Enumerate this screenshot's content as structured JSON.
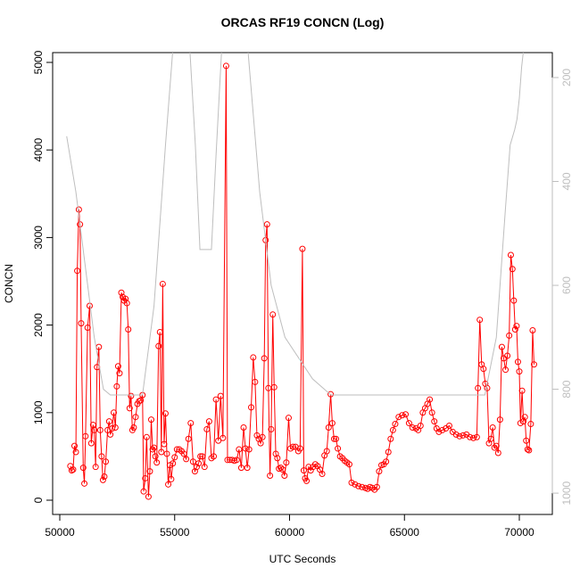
{
  "chart_data": {
    "type": "line",
    "title": "ORCAS RF19 CONCN (Log)",
    "x_label": "UTC Seconds",
    "y_label": "CONCN",
    "xlim": [
      49689,
      71437
    ],
    "ylim": [
      -163,
      5112
    ],
    "y2lim": [
      1041,
      152
    ],
    "xticks": [
      50000,
      55000,
      60000,
      65000,
      70000
    ],
    "yticks": [
      0,
      1000,
      2000,
      3000,
      4000,
      5000
    ],
    "y2ticks": [
      200,
      400,
      600,
      800,
      1000
    ],
    "series": [
      {
        "color": "#ff0000",
        "markers": true,
        "x": [
          50460,
          50520,
          50580,
          50640,
          50700,
          50760,
          50830,
          50880,
          50930,
          51020,
          51070,
          51120,
          51210,
          51300,
          51370,
          51450,
          51500,
          51560,
          51620,
          51700,
          51760,
          51820,
          51880,
          51940,
          52000,
          52080,
          52150,
          52200,
          52280,
          52350,
          52420,
          52480,
          52540,
          52600,
          52680,
          52740,
          52800,
          52860,
          52920,
          52980,
          53040,
          53100,
          53160,
          53220,
          53300,
          53380,
          53450,
          53520,
          53600,
          53650,
          53720,
          53780,
          53860,
          53920,
          53980,
          54040,
          54100,
          54160,
          54220,
          54300,
          54360,
          54420,
          54480,
          54540,
          54600,
          54660,
          54720,
          54790,
          54850,
          54920,
          55000,
          55100,
          55200,
          55300,
          55400,
          55500,
          55600,
          55700,
          55800,
          55880,
          55960,
          56040,
          56120,
          56200,
          56300,
          56400,
          56500,
          56600,
          56700,
          56800,
          56900,
          57000,
          57100,
          57240,
          57300,
          57400,
          57500,
          57600,
          57700,
          57800,
          57900,
          58000,
          58080,
          58160,
          58240,
          58330,
          58420,
          58500,
          58580,
          58660,
          58740,
          58820,
          58900,
          58960,
          59020,
          59080,
          59150,
          59200,
          59270,
          59330,
          59400,
          59470,
          59540,
          59620,
          59700,
          59780,
          59860,
          59960,
          60040,
          60150,
          60260,
          60380,
          60460,
          60560,
          60620,
          60680,
          60740,
          60830,
          60920,
          61020,
          61120,
          61220,
          61320,
          61420,
          61520,
          61620,
          61700,
          61790,
          61860,
          61940,
          62020,
          62100,
          62200,
          62300,
          62400,
          62500,
          62600,
          62700,
          62850,
          63000,
          63150,
          63300,
          63400,
          63500,
          63600,
          63700,
          63800,
          63900,
          64000,
          64100,
          64200,
          64300,
          64400,
          64500,
          64600,
          64750,
          64900,
          65050,
          65200,
          65350,
          65500,
          65600,
          65700,
          65800,
          65900,
          66000,
          66100,
          66200,
          66300,
          66400,
          66500,
          66650,
          66800,
          66950,
          67100,
          67250,
          67400,
          67550,
          67700,
          67850,
          68000,
          68150,
          68200,
          68280,
          68360,
          68440,
          68520,
          68600,
          68680,
          68760,
          68840,
          68920,
          69000,
          69080,
          69160,
          69240,
          69320,
          69400,
          69480,
          69560,
          69630,
          69700,
          69760,
          69820,
          69880,
          69940,
          70000,
          70050,
          70120,
          70180,
          70240,
          70300,
          70360,
          70420,
          70500,
          70580,
          70640
        ],
        "values": [
          390,
          340,
          350,
          620,
          550,
          2620,
          3320,
          3150,
          2020,
          370,
          190,
          730,
          1970,
          2220,
          650,
          860,
          800,
          380,
          1520,
          1750,
          800,
          500,
          230,
          270,
          440,
          800,
          900,
          750,
          820,
          1000,
          830,
          1300,
          1530,
          1450,
          2370,
          2320,
          2280,
          2300,
          2250,
          1950,
          1050,
          1190,
          800,
          830,
          950,
          1100,
          1130,
          1140,
          1200,
          100,
          250,
          720,
          40,
          330,
          920,
          580,
          600,
          500,
          430,
          1760,
          1920,
          550,
          2470,
          640,
          990,
          530,
          180,
          400,
          240,
          420,
          490,
          580,
          580,
          560,
          530,
          470,
          700,
          880,
          440,
          330,
          380,
          420,
          500,
          500,
          380,
          810,
          900,
          480,
          500,
          1150,
          680,
          1190,
          710,
          4960,
          460,
          460,
          460,
          450,
          460,
          580,
          370,
          830,
          590,
          370,
          580,
          1060,
          1630,
          1350,
          740,
          700,
          650,
          720,
          1620,
          2970,
          3150,
          1280,
          280,
          810,
          2120,
          1290,
          530,
          480,
          360,
          370,
          350,
          280,
          430,
          940,
          590,
          610,
          610,
          560,
          590,
          2870,
          340,
          250,
          220,
          380,
          340,
          380,
          410,
          390,
          350,
          300,
          510,
          560,
          830,
          1210,
          880,
          700,
          700,
          590,
          500,
          480,
          450,
          430,
          410,
          200,
          180,
          160,
          150,
          140,
          130,
          150,
          140,
          120,
          150,
          330,
          400,
          410,
          440,
          550,
          700,
          800,
          870,
          950,
          970,
          980,
          880,
          830,
          820,
          800,
          850,
          1000,
          1050,
          1100,
          1150,
          1000,
          900,
          820,
          780,
          800,
          820,
          850,
          780,
          750,
          730,
          740,
          750,
          720,
          710,
          720,
          1280,
          2060,
          1550,
          1500,
          1330,
          1280,
          650,
          700,
          830,
          600,
          620,
          540,
          920,
          1750,
          1620,
          1490,
          1650,
          1880,
          2800,
          2640,
          2280,
          1950,
          1990,
          1580,
          1470,
          880,
          1250,
          900,
          950,
          680,
          580,
          570,
          870,
          1940,
          1550
        ]
      },
      {
        "color": "#bebebe",
        "axis": "y2",
        "markers": false,
        "x": [
          50300,
          50700,
          51100,
          51500,
          51900,
          52200,
          53600,
          54100,
          54600,
          55000,
          55600,
          55900,
          56100,
          56600,
          56800,
          57100,
          58100,
          58400,
          58700,
          59200,
          59800,
          61000,
          61800,
          68500,
          69000,
          69400,
          69600,
          69800,
          69900,
          70000,
          70100,
          70300
        ],
        "values": [
          313,
          420,
          560,
          700,
          800,
          811,
          811,
          640,
          330,
          100,
          100,
          330,
          531,
          531,
          350,
          100,
          100,
          260,
          420,
          600,
          700,
          780,
          811,
          811,
          700,
          450,
          330,
          300,
          280,
          240,
          180,
          100
        ]
      }
    ]
  }
}
